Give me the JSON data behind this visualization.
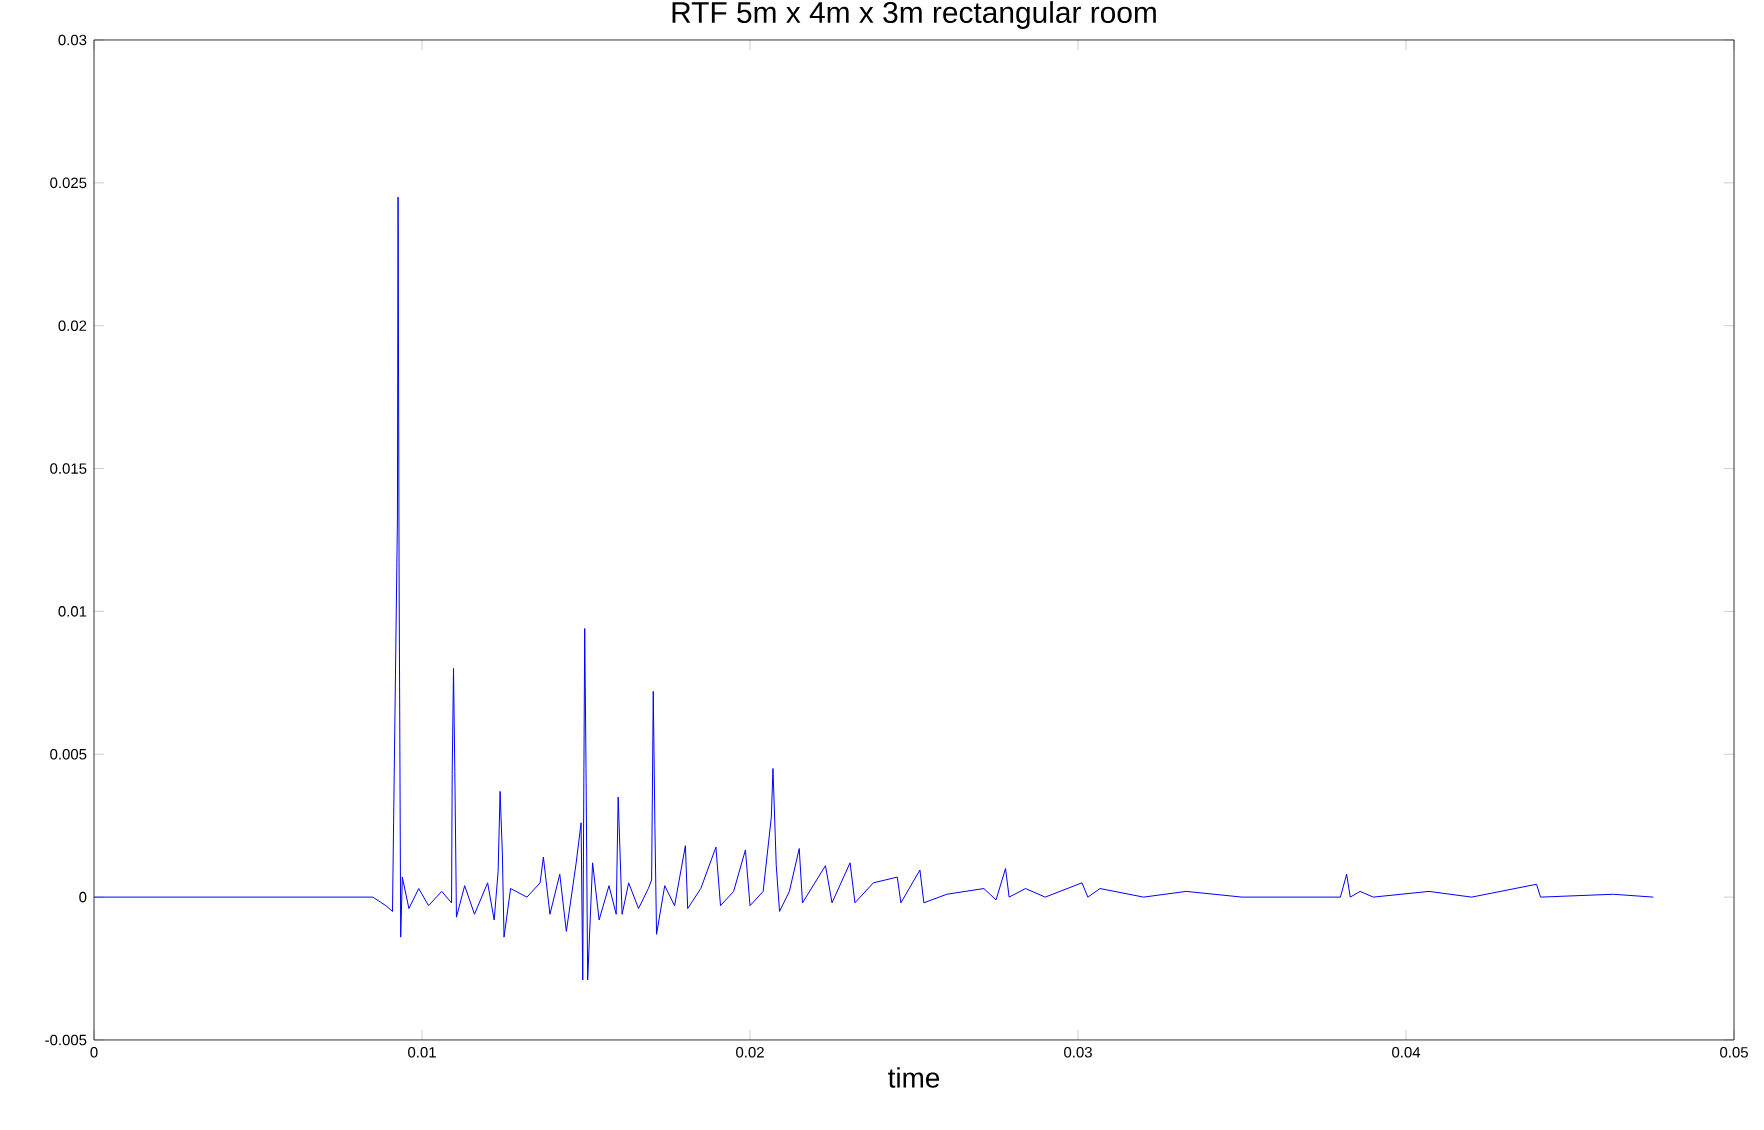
{
  "chart_data": {
    "type": "line",
    "title": "RTF 5m x 4m x 3m rectangular room",
    "xlabel": "time",
    "color": "#0000ff",
    "line_style": "solid",
    "xlim": [
      0,
      0.05
    ],
    "ylim": [
      -0.005,
      0.03
    ],
    "xticks": [
      0,
      0.01,
      0.02,
      0.03,
      0.04,
      0.05
    ],
    "yticks": [
      -0.005,
      0,
      0.005,
      0.01,
      0.015,
      0.02,
      0.025,
      0.03
    ],
    "x": [
      0,
      0.0085,
      0.0089,
      0.0091,
      0.00925,
      0.00927,
      0.0093,
      0.00935,
      0.0094,
      0.0096,
      0.0099,
      0.0102,
      0.0106,
      0.0109,
      0.01092,
      0.01096,
      0.011,
      0.01105,
      0.0113,
      0.0116,
      0.012,
      0.0122,
      0.01232,
      0.01238,
      0.01245,
      0.0125,
      0.0127,
      0.0132,
      0.0136,
      0.0137,
      0.0139,
      0.0142,
      0.0144,
      0.0147,
      0.01485,
      0.0149,
      0.01496,
      0.015,
      0.01505,
      0.0152,
      0.0154,
      0.0157,
      0.01592,
      0.01598,
      0.0161,
      0.0163,
      0.0166,
      0.0169,
      0.017,
      0.01705,
      0.0171,
      0.01715,
      0.0174,
      0.0177,
      0.01803,
      0.0181,
      0.0185,
      0.01896,
      0.0191,
      0.0195,
      0.01986,
      0.02,
      0.0204,
      0.02065,
      0.0207,
      0.0208,
      0.0209,
      0.0212,
      0.0215,
      0.0216,
      0.0223,
      0.0225,
      0.02305,
      0.0232,
      0.02376,
      0.02449,
      0.0246,
      0.02518,
      0.0253,
      0.026,
      0.02713,
      0.0275,
      0.02779,
      0.0279,
      0.0284,
      0.029,
      0.03012,
      0.0303,
      0.03067,
      0.032,
      0.0333,
      0.035,
      0.038,
      0.03819,
      0.0383,
      0.0386,
      0.039,
      0.0407,
      0.042,
      0.04398,
      0.0441,
      0.04632,
      0.04754
    ],
    "values": [
      0,
      0,
      -0.0003,
      -0.0005,
      0.0132,
      0.0245,
      0.0117,
      -0.0014,
      0.0007,
      -0.0004,
      0.0003,
      -0.0003,
      0.0002,
      -0.0002,
      0.0043,
      0.008,
      0.0044,
      -0.0007,
      0.0004,
      -0.0006,
      0.0005,
      -0.0008,
      0.0009,
      0.0037,
      0.0015,
      -0.0014,
      0.0003,
      0,
      0.0005,
      0.0014,
      -0.0006,
      0.0008,
      -0.0012,
      0.0012,
      0.0026,
      -0.0029,
      0.0094,
      0.0045,
      -0.0029,
      0.0012,
      -0.0008,
      0.0004,
      -0.0006,
      0.0035,
      -0.0006,
      0.0005,
      -0.0004,
      0.0003,
      0.0006,
      0.0072,
      0.0025,
      -0.0013,
      0.0004,
      -0.0003,
      0.0018,
      -0.0004,
      0.0003,
      0.00175,
      -0.0003,
      0.0002,
      0.00165,
      -0.0003,
      0.0002,
      0.0028,
      0.0045,
      0.0011,
      -0.0005,
      0.0002,
      0.0017,
      -0.0002,
      0.0011,
      -0.0002,
      0.0012,
      -0.0002,
      0.0005,
      0.0007,
      -0.0002,
      0.00095,
      -0.0002,
      0.0001,
      0.0003,
      -0.0001,
      0.001,
      0,
      0.0003,
      0,
      0.0005,
      0,
      0.0003,
      0,
      0.0002,
      0,
      0,
      0.0008,
      0,
      0.0002,
      0,
      0.0002,
      0,
      0.00045,
      0,
      0.0001,
      0
    ]
  }
}
